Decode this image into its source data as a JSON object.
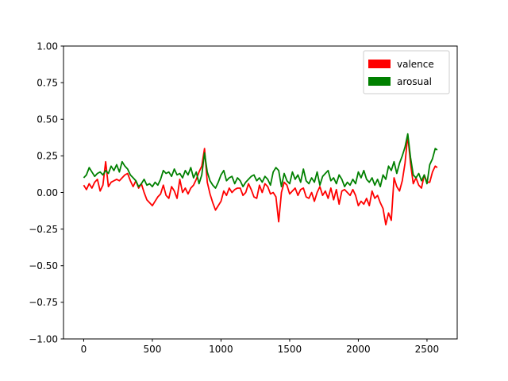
{
  "chart_data": {
    "type": "line",
    "title": "",
    "xlabel": "",
    "ylabel": "",
    "xlim": [
      -147,
      2720
    ],
    "ylim": [
      -1.0,
      1.0
    ],
    "xticks": [
      0,
      500,
      1000,
      1500,
      2000,
      2500
    ],
    "xtick_labels": [
      "0",
      "500",
      "1000",
      "1500",
      "2000",
      "2500"
    ],
    "yticks": [
      -1.0,
      -0.75,
      -0.5,
      -0.25,
      0.0,
      0.25,
      0.5,
      0.75,
      1.0
    ],
    "ytick_labels": [
      "−1.00",
      "−0.75",
      "−0.50",
      "−0.25",
      "0.00",
      "0.25",
      "0.50",
      "0.75",
      "1.00"
    ],
    "grid": false,
    "legend_position": "upper right",
    "series": [
      {
        "name": "valence",
        "color": "#ff0000",
        "points": [
          [
            0,
            0.05
          ],
          [
            20,
            0.02
          ],
          [
            40,
            0.06
          ],
          [
            60,
            0.03
          ],
          [
            80,
            0.07
          ],
          [
            100,
            0.09
          ],
          [
            120,
            0.01
          ],
          [
            140,
            0.05
          ],
          [
            160,
            0.21
          ],
          [
            180,
            0.04
          ],
          [
            200,
            0.07
          ],
          [
            220,
            0.08
          ],
          [
            240,
            0.09
          ],
          [
            260,
            0.08
          ],
          [
            280,
            0.1
          ],
          [
            300,
            0.12
          ],
          [
            320,
            0.13
          ],
          [
            340,
            0.08
          ],
          [
            360,
            0.04
          ],
          [
            380,
            0.08
          ],
          [
            400,
            0.03
          ],
          [
            420,
            0.06
          ],
          [
            440,
            0.0
          ],
          [
            460,
            -0.05
          ],
          [
            480,
            -0.07
          ],
          [
            500,
            -0.09
          ],
          [
            520,
            -0.06
          ],
          [
            540,
            -0.03
          ],
          [
            560,
            -0.01
          ],
          [
            580,
            0.05
          ],
          [
            600,
            -0.02
          ],
          [
            620,
            -0.04
          ],
          [
            640,
            0.04
          ],
          [
            660,
            0.01
          ],
          [
            680,
            -0.04
          ],
          [
            700,
            0.09
          ],
          [
            720,
            0.0
          ],
          [
            740,
            0.03
          ],
          [
            760,
            -0.01
          ],
          [
            780,
            0.03
          ],
          [
            800,
            0.05
          ],
          [
            820,
            0.09
          ],
          [
            840,
            0.14
          ],
          [
            860,
            0.18
          ],
          [
            880,
            0.3
          ],
          [
            900,
            0.07
          ],
          [
            920,
            -0.01
          ],
          [
            940,
            -0.07
          ],
          [
            960,
            -0.12
          ],
          [
            980,
            -0.09
          ],
          [
            1000,
            -0.06
          ],
          [
            1020,
            0.01
          ],
          [
            1040,
            -0.02
          ],
          [
            1060,
            0.03
          ],
          [
            1080,
            0.0
          ],
          [
            1100,
            0.02
          ],
          [
            1120,
            0.03
          ],
          [
            1140,
            0.03
          ],
          [
            1160,
            -0.02
          ],
          [
            1180,
            0.0
          ],
          [
            1200,
            0.06
          ],
          [
            1220,
            0.02
          ],
          [
            1240,
            -0.03
          ],
          [
            1260,
            -0.04
          ],
          [
            1280,
            0.05
          ],
          [
            1300,
            0.0
          ],
          [
            1320,
            0.06
          ],
          [
            1340,
            0.04
          ],
          [
            1360,
            -0.01
          ],
          [
            1380,
            0.0
          ],
          [
            1400,
            -0.03
          ],
          [
            1420,
            -0.2
          ],
          [
            1440,
            0.0
          ],
          [
            1460,
            0.07
          ],
          [
            1480,
            0.05
          ],
          [
            1500,
            -0.01
          ],
          [
            1520,
            0.01
          ],
          [
            1540,
            0.03
          ],
          [
            1560,
            -0.02
          ],
          [
            1580,
            0.02
          ],
          [
            1600,
            0.03
          ],
          [
            1620,
            -0.03
          ],
          [
            1640,
            -0.04
          ],
          [
            1660,
            0.0
          ],
          [
            1680,
            -0.06
          ],
          [
            1700,
            0.0
          ],
          [
            1720,
            0.04
          ],
          [
            1740,
            -0.02
          ],
          [
            1760,
            0.01
          ],
          [
            1780,
            -0.04
          ],
          [
            1800,
            0.03
          ],
          [
            1820,
            -0.05
          ],
          [
            1840,
            0.02
          ],
          [
            1860,
            -0.08
          ],
          [
            1880,
            0.01
          ],
          [
            1900,
            0.02
          ],
          [
            1920,
            0.0
          ],
          [
            1940,
            -0.02
          ],
          [
            1960,
            0.02
          ],
          [
            1980,
            -0.02
          ],
          [
            2000,
            -0.09
          ],
          [
            2020,
            -0.06
          ],
          [
            2040,
            -0.08
          ],
          [
            2060,
            -0.04
          ],
          [
            2080,
            -0.09
          ],
          [
            2100,
            0.01
          ],
          [
            2120,
            -0.04
          ],
          [
            2140,
            -0.02
          ],
          [
            2160,
            -0.07
          ],
          [
            2180,
            -0.11
          ],
          [
            2200,
            -0.22
          ],
          [
            2220,
            -0.14
          ],
          [
            2240,
            -0.19
          ],
          [
            2260,
            0.1
          ],
          [
            2280,
            0.04
          ],
          [
            2300,
            0.01
          ],
          [
            2320,
            0.08
          ],
          [
            2340,
            0.2
          ],
          [
            2360,
            0.39
          ],
          [
            2380,
            0.2
          ],
          [
            2400,
            0.06
          ],
          [
            2420,
            0.1
          ],
          [
            2440,
            0.05
          ],
          [
            2460,
            0.03
          ],
          [
            2480,
            0.12
          ],
          [
            2500,
            0.07
          ],
          [
            2520,
            0.07
          ],
          [
            2540,
            0.14
          ],
          [
            2560,
            0.18
          ],
          [
            2575,
            0.17
          ]
        ]
      },
      {
        "name": "arosual",
        "color": "#008000",
        "points": [
          [
            0,
            0.1
          ],
          [
            20,
            0.12
          ],
          [
            40,
            0.17
          ],
          [
            60,
            0.14
          ],
          [
            80,
            0.11
          ],
          [
            100,
            0.13
          ],
          [
            120,
            0.14
          ],
          [
            140,
            0.12
          ],
          [
            160,
            0.15
          ],
          [
            180,
            0.13
          ],
          [
            200,
            0.18
          ],
          [
            220,
            0.15
          ],
          [
            240,
            0.19
          ],
          [
            260,
            0.14
          ],
          [
            280,
            0.21
          ],
          [
            300,
            0.18
          ],
          [
            320,
            0.16
          ],
          [
            340,
            0.12
          ],
          [
            360,
            0.1
          ],
          [
            380,
            0.08
          ],
          [
            400,
            0.04
          ],
          [
            420,
            0.06
          ],
          [
            440,
            0.09
          ],
          [
            460,
            0.05
          ],
          [
            480,
            0.06
          ],
          [
            500,
            0.04
          ],
          [
            520,
            0.07
          ],
          [
            540,
            0.05
          ],
          [
            560,
            0.09
          ],
          [
            580,
            0.15
          ],
          [
            600,
            0.13
          ],
          [
            620,
            0.14
          ],
          [
            640,
            0.11
          ],
          [
            660,
            0.16
          ],
          [
            680,
            0.12
          ],
          [
            700,
            0.13
          ],
          [
            720,
            0.1
          ],
          [
            740,
            0.15
          ],
          [
            760,
            0.12
          ],
          [
            780,
            0.17
          ],
          [
            800,
            0.1
          ],
          [
            820,
            0.14
          ],
          [
            840,
            0.06
          ],
          [
            860,
            0.12
          ],
          [
            880,
            0.27
          ],
          [
            900,
            0.14
          ],
          [
            920,
            0.08
          ],
          [
            940,
            0.05
          ],
          [
            960,
            0.03
          ],
          [
            980,
            0.07
          ],
          [
            1000,
            0.12
          ],
          [
            1020,
            0.15
          ],
          [
            1040,
            0.08
          ],
          [
            1060,
            0.1
          ],
          [
            1080,
            0.11
          ],
          [
            1100,
            0.06
          ],
          [
            1120,
            0.1
          ],
          [
            1140,
            0.08
          ],
          [
            1160,
            0.04
          ],
          [
            1180,
            0.07
          ],
          [
            1200,
            0.09
          ],
          [
            1220,
            0.11
          ],
          [
            1240,
            0.12
          ],
          [
            1260,
            0.08
          ],
          [
            1280,
            0.1
          ],
          [
            1300,
            0.07
          ],
          [
            1320,
            0.11
          ],
          [
            1340,
            0.09
          ],
          [
            1360,
            0.05
          ],
          [
            1380,
            0.14
          ],
          [
            1400,
            0.17
          ],
          [
            1420,
            0.15
          ],
          [
            1440,
            0.04
          ],
          [
            1460,
            0.13
          ],
          [
            1480,
            0.08
          ],
          [
            1500,
            0.06
          ],
          [
            1520,
            0.14
          ],
          [
            1540,
            0.09
          ],
          [
            1560,
            0.12
          ],
          [
            1580,
            0.07
          ],
          [
            1600,
            0.16
          ],
          [
            1620,
            0.08
          ],
          [
            1640,
            0.06
          ],
          [
            1660,
            0.1
          ],
          [
            1680,
            0.07
          ],
          [
            1700,
            0.14
          ],
          [
            1720,
            0.05
          ],
          [
            1740,
            0.11
          ],
          [
            1760,
            0.13
          ],
          [
            1780,
            0.15
          ],
          [
            1800,
            0.08
          ],
          [
            1820,
            0.1
          ],
          [
            1840,
            0.06
          ],
          [
            1860,
            0.12
          ],
          [
            1880,
            0.09
          ],
          [
            1900,
            0.04
          ],
          [
            1920,
            0.07
          ],
          [
            1940,
            0.05
          ],
          [
            1960,
            0.09
          ],
          [
            1980,
            0.06
          ],
          [
            2000,
            0.14
          ],
          [
            2020,
            0.1
          ],
          [
            2040,
            0.15
          ],
          [
            2060,
            0.09
          ],
          [
            2080,
            0.07
          ],
          [
            2100,
            0.1
          ],
          [
            2120,
            0.05
          ],
          [
            2140,
            0.09
          ],
          [
            2160,
            0.04
          ],
          [
            2180,
            0.12
          ],
          [
            2200,
            0.09
          ],
          [
            2220,
            0.18
          ],
          [
            2240,
            0.15
          ],
          [
            2260,
            0.21
          ],
          [
            2280,
            0.13
          ],
          [
            2300,
            0.2
          ],
          [
            2320,
            0.25
          ],
          [
            2340,
            0.31
          ],
          [
            2360,
            0.4
          ],
          [
            2380,
            0.24
          ],
          [
            2400,
            0.12
          ],
          [
            2420,
            0.1
          ],
          [
            2440,
            0.13
          ],
          [
            2460,
            0.08
          ],
          [
            2480,
            0.12
          ],
          [
            2500,
            0.06
          ],
          [
            2520,
            0.19
          ],
          [
            2540,
            0.23
          ],
          [
            2560,
            0.3
          ],
          [
            2575,
            0.29
          ]
        ]
      }
    ]
  }
}
